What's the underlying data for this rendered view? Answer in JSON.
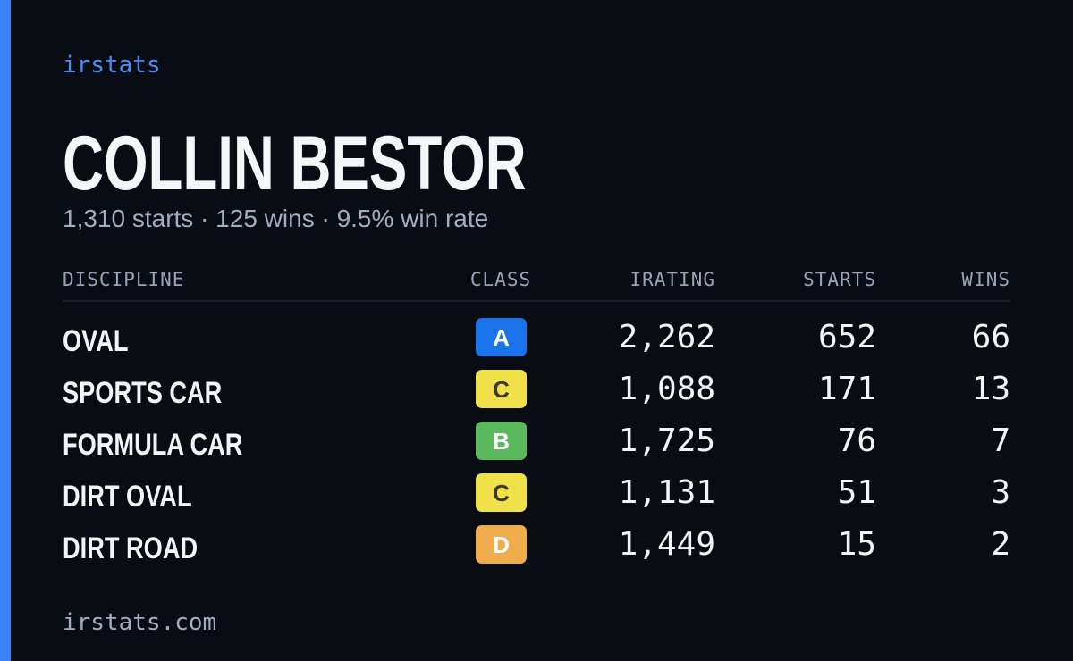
{
  "brand": "irstats",
  "player": {
    "name": "COLLIN BESTOR",
    "summary": "1,310 starts · 125 wins · 9.5% win rate"
  },
  "table": {
    "headers": {
      "discipline": "DISCIPLINE",
      "class": "CLASS",
      "irating": "IRATING",
      "starts": "STARTS",
      "wins": "WINS"
    },
    "rows": [
      {
        "discipline": "OVAL",
        "class": "A",
        "class_color": "#1a73e8",
        "class_text_color": "#ffffff",
        "irating": "2,262",
        "starts": "652",
        "wins": "66"
      },
      {
        "discipline": "SPORTS CAR",
        "class": "C",
        "class_color": "#f0e14a",
        "class_text_color": "#3a3a2a",
        "irating": "1,088",
        "starts": "171",
        "wins": "13"
      },
      {
        "discipline": "FORMULA CAR",
        "class": "B",
        "class_color": "#5cb85c",
        "class_text_color": "#ffffff",
        "irating": "1,725",
        "starts": "76",
        "wins": "7"
      },
      {
        "discipline": "DIRT OVAL",
        "class": "C",
        "class_color": "#f0e14a",
        "class_text_color": "#3a3a2a",
        "irating": "1,131",
        "starts": "51",
        "wins": "3"
      },
      {
        "discipline": "DIRT ROAD",
        "class": "D",
        "class_color": "#f0ad4e",
        "class_text_color": "#ffffff",
        "irating": "1,449",
        "starts": "15",
        "wins": "2"
      }
    ]
  },
  "footer": "irstats.com",
  "colors": {
    "background": "#0a0c13",
    "accent": "#3b82f6"
  }
}
